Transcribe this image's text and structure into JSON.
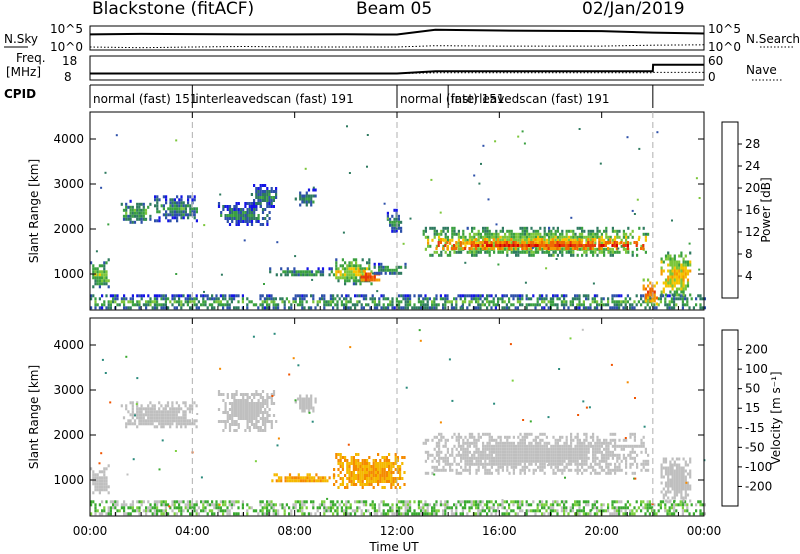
{
  "header": {
    "station": "Blackstone (fitACF)",
    "beam": "Beam 05",
    "date": "02/Jan/2019"
  },
  "summary_panels": {
    "nsky_label": "N.Sky",
    "nsearch_label": "N.Search",
    "sky_ticks": [
      "10^5",
      "10^0"
    ],
    "sky_ticks_right": [
      "10^5",
      "10^0"
    ],
    "freq_label_1": "Freq.",
    "freq_label_2": "[MHz]",
    "freq_ticks": [
      "18",
      "8"
    ],
    "nave_label": "Nave",
    "nave_ticks": [
      "60",
      "0"
    ],
    "cpid_label": "CPID",
    "cpid_segments": [
      {
        "label": "normal (fast)",
        "id": "151",
        "start": 0,
        "end": 4
      },
      {
        "label": "interleavedscan (fast)",
        "id": "191",
        "start": 4,
        "end": 12
      },
      {
        "label": "normal (fast)",
        "id": "151",
        "start": 12,
        "end": 14
      },
      {
        "label": "interleavedscan (fast)",
        "id": "191",
        "start": 14,
        "end": 22
      }
    ]
  },
  "colorbars": {
    "power": {
      "label": "Power [dB]",
      "ticks": [
        "4",
        "8",
        "12",
        "16",
        "20",
        "24",
        "28"
      ],
      "colors": [
        "#1414e6",
        "#2d50aa",
        "#2e7a5f",
        "#3aa040",
        "#7cc63a",
        "#f5c400",
        "#f59a00",
        "#f06a00",
        "#e8360a",
        "#d80000"
      ]
    },
    "velocity": {
      "label": "Velocity [m s⁻¹]",
      "ticks": [
        "200",
        "100",
        "50",
        "15",
        "-15",
        "-50",
        "-100",
        "-200"
      ],
      "colors": [
        "#2840a8",
        "#2a8a7c",
        "#3aaa30",
        "#7dd040",
        "#bfbfbf",
        "#f5b800",
        "#f58a00",
        "#f05400",
        "#e40000"
      ]
    }
  },
  "chart_data": [
    {
      "type": "line",
      "title": "N.Sky / N.Search",
      "ylabel": "N.Sky",
      "y_scale": "log",
      "x": [
        "00:00",
        "02:00",
        "04:00",
        "06:00",
        "08:00",
        "10:00",
        "12:00",
        "13:30",
        "16:00",
        "18:00",
        "20:00",
        "22:00",
        "24:00"
      ],
      "series": [
        {
          "name": "N.Sky",
          "values": [
            3000,
            4000,
            3500,
            3000,
            3000,
            3200,
            2800,
            40000,
            25000,
            20000,
            18000,
            8000,
            5000
          ]
        },
        {
          "name": "N.Search",
          "values": [
            3,
            2,
            3,
            4,
            3,
            3,
            3,
            6,
            5,
            5,
            5,
            8,
            10
          ]
        }
      ]
    },
    {
      "type": "line",
      "title": "Freq. / Nave",
      "ylabel": "Freq. [MHz]",
      "x_hours": [
        0,
        0.05,
        4,
        8,
        12,
        13.5,
        14,
        18,
        22,
        22.01,
        24
      ],
      "series": [
        {
          "name": "Freq.",
          "values": [
            10.5,
            10.5,
            10.5,
            10.5,
            10.5,
            11.5,
            11.5,
            11.5,
            11.5,
            14.5,
            14.5
          ]
        },
        {
          "name": "Nave",
          "values": [
            15,
            15,
            15,
            15,
            15,
            17,
            17,
            17,
            17,
            18,
            18
          ]
        }
      ]
    },
    {
      "type": "heatmap",
      "title": "Power",
      "xlabel": "",
      "ylabel": "Slant Range [km]",
      "xlim": [
        0,
        24
      ],
      "ylim": [
        200,
        4600
      ],
      "x_ticks": [
        "00:00",
        "04:00",
        "08:00",
        "12:00",
        "16:00",
        "20:00",
        "00:00"
      ],
      "y_ticks": [
        "1000",
        "2000",
        "3000",
        "4000"
      ],
      "regions": [
        {
          "t0": 0.0,
          "t1": 0.7,
          "r0": 700,
          "r1": 1350,
          "v": 12
        },
        {
          "t0": 0.0,
          "t1": 24.0,
          "r0": 250,
          "r1": 550,
          "v": 10
        },
        {
          "t0": 1.2,
          "t1": 2.4,
          "r0": 2150,
          "r1": 2650,
          "v": 9
        },
        {
          "t0": 2.5,
          "t1": 4.2,
          "r0": 2200,
          "r1": 2750,
          "v": 8
        },
        {
          "t0": 5.0,
          "t1": 7.0,
          "r0": 2100,
          "r1": 2600,
          "v": 7
        },
        {
          "t0": 6.2,
          "t1": 7.3,
          "r0": 2500,
          "r1": 3000,
          "v": 7
        },
        {
          "t0": 8.0,
          "t1": 8.8,
          "r0": 2500,
          "r1": 2900,
          "v": 7
        },
        {
          "t0": 7.0,
          "t1": 9.5,
          "r0": 950,
          "r1": 1150,
          "v": 9
        },
        {
          "t0": 9.5,
          "t1": 11.0,
          "r0": 800,
          "r1": 1350,
          "v": 14
        },
        {
          "t0": 10.4,
          "t1": 11.4,
          "r0": 850,
          "r1": 1100,
          "v": 24
        },
        {
          "t0": 11.0,
          "t1": 12.3,
          "r0": 1000,
          "r1": 1250,
          "v": 9
        },
        {
          "t0": 11.6,
          "t1": 12.2,
          "r0": 1900,
          "r1": 2450,
          "v": 7
        },
        {
          "t0": 13.0,
          "t1": 21.8,
          "r0": 1400,
          "r1": 2050,
          "v": 14
        },
        {
          "t0": 13.5,
          "t1": 21.6,
          "r0": 1550,
          "r1": 1800,
          "v": 24
        },
        {
          "t0": 21.6,
          "t1": 22.2,
          "r0": 350,
          "r1": 900,
          "v": 22
        },
        {
          "t0": 22.3,
          "t1": 23.5,
          "r0": 500,
          "r1": 1500,
          "v": 16
        }
      ]
    },
    {
      "type": "heatmap",
      "title": "Velocity",
      "xlabel": "Time UT",
      "ylabel": "Slant Range [km]",
      "xlim": [
        0,
        24
      ],
      "ylim": [
        200,
        4600
      ],
      "x_ticks": [
        "00:00",
        "04:00",
        "08:00",
        "12:00",
        "16:00",
        "20:00",
        "00:00"
      ],
      "y_ticks": [
        "1000",
        "2000",
        "3000",
        "4000"
      ],
      "regions": [
        {
          "t0": 0.0,
          "t1": 0.7,
          "r0": 700,
          "r1": 1350,
          "v": 0
        },
        {
          "t0": 0.0,
          "t1": 24.0,
          "r0": 250,
          "r1": 550,
          "v": 30
        },
        {
          "t0": 1.2,
          "t1": 4.2,
          "r0": 2150,
          "r1": 2750,
          "v": 0
        },
        {
          "t0": 5.0,
          "t1": 7.3,
          "r0": 2100,
          "r1": 3000,
          "v": 0
        },
        {
          "t0": 8.0,
          "t1": 8.8,
          "r0": 2500,
          "r1": 2900,
          "v": 0
        },
        {
          "t0": 7.0,
          "t1": 9.5,
          "r0": 950,
          "r1": 1150,
          "v": -30
        },
        {
          "t0": 9.5,
          "t1": 12.3,
          "r0": 800,
          "r1": 1600,
          "v": -30
        },
        {
          "t0": 13.0,
          "t1": 21.8,
          "r0": 1150,
          "r1": 2050,
          "v": 0
        },
        {
          "t0": 22.3,
          "t1": 23.5,
          "r0": 500,
          "r1": 1500,
          "v": 0
        }
      ]
    }
  ],
  "x_axis": {
    "label": "Time UT",
    "ticks": [
      "00:00",
      "04:00",
      "08:00",
      "12:00",
      "16:00",
      "20:00",
      "00:00"
    ]
  }
}
